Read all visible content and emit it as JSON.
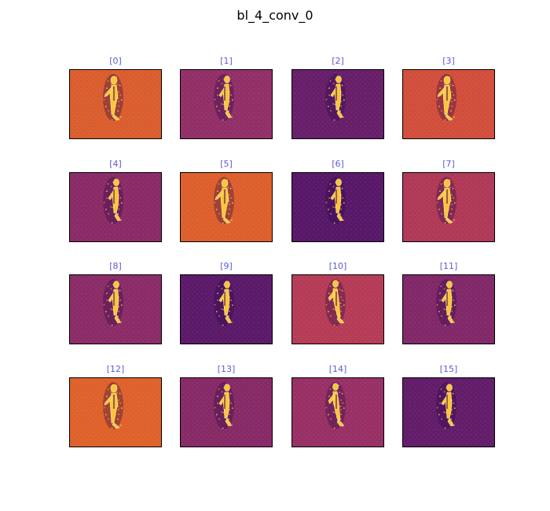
{
  "figure": {
    "title": "bl_4_conv_0"
  },
  "chart_data": {
    "type": "heatmap",
    "title": "bl_4_conv_0",
    "colormap": "inferno",
    "title_color": "#5b5bd6",
    "grid": false,
    "panels": [
      {
        "label": "[0]",
        "background": "#e0602f",
        "pose": 0
      },
      {
        "label": "[1]",
        "background": "#96306a",
        "pose": 1
      },
      {
        "label": "[2]",
        "background": "#6a1f6c",
        "pose": 1
      },
      {
        "label": "[3]",
        "background": "#d7503d",
        "pose": 0
      },
      {
        "label": "[4]",
        "background": "#8e2c69",
        "pose": 1
      },
      {
        "label": "[5]",
        "background": "#e3622d",
        "pose": 0
      },
      {
        "label": "[6]",
        "background": "#5a186b",
        "pose": 1
      },
      {
        "label": "[7]",
        "background": "#b53a5a",
        "pose": 0
      },
      {
        "label": "[8]",
        "background": "#8f2d6a",
        "pose": 1
      },
      {
        "label": "[9]",
        "background": "#5e1a6c",
        "pose": 1
      },
      {
        "label": "[10]",
        "background": "#ba3d58",
        "pose": 2
      },
      {
        "label": "[11]",
        "background": "#85296b",
        "pose": 1
      },
      {
        "label": "[12]",
        "background": "#e5642c",
        "pose": 0
      },
      {
        "label": "[13]",
        "background": "#8a2b69",
        "pose": 1
      },
      {
        "label": "[14]",
        "background": "#9c3168",
        "pose": 2
      },
      {
        "label": "[15]",
        "background": "#651d6c",
        "pose": 1
      }
    ]
  }
}
